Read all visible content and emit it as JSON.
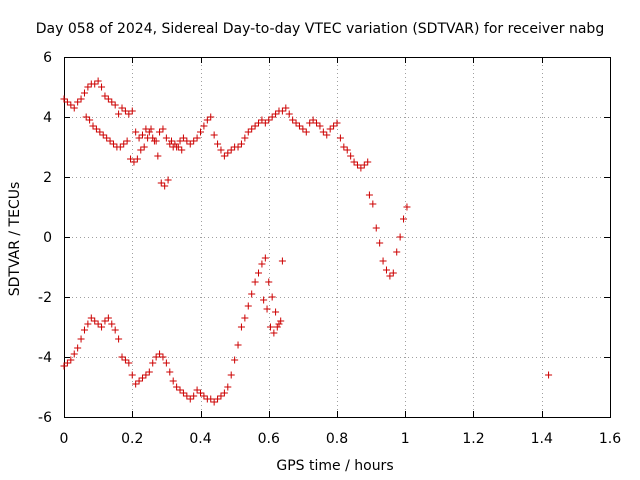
{
  "chart_data": {
    "type": "scatter",
    "title": "Day 058 of 2024, Sidereal Day-to-day VTEC variation (SDTVAR) for receiver nabg",
    "xlabel": "GPS time / hours",
    "ylabel": "SDTVAR / TECUs",
    "xlim": [
      0,
      1.6
    ],
    "ylim": [
      -6,
      6
    ],
    "xticks": [
      "0",
      "0.2",
      "0.4",
      "0.6",
      "0.8",
      "1",
      "1.2",
      "1.4",
      "1.6"
    ],
    "yticks": [
      "-6",
      "-4",
      "-2",
      "0",
      "2",
      "4",
      "6"
    ],
    "grid": true,
    "marker": "plus",
    "series": [
      {
        "name": "SDTVAR",
        "color": "#cc0000",
        "x": [
          0.0,
          0.01,
          0.02,
          0.03,
          0.04,
          0.05,
          0.06,
          0.07,
          0.08,
          0.09,
          0.1,
          0.11,
          0.12,
          0.13,
          0.14,
          0.15,
          0.16,
          0.17,
          0.18,
          0.19,
          0.2,
          0.21,
          0.22,
          0.23,
          0.24,
          0.25,
          0.26,
          0.27,
          0.28,
          0.29,
          0.3,
          0.31,
          0.32,
          0.33,
          0.34,
          0.35,
          0.36,
          0.37,
          0.38,
          0.39,
          0.4,
          0.41,
          0.42,
          0.43,
          0.44,
          0.45,
          0.46,
          0.47,
          0.48,
          0.49,
          0.5,
          0.51,
          0.52,
          0.53,
          0.54,
          0.55,
          0.56,
          0.57,
          0.58,
          0.59,
          0.6,
          0.61,
          0.62,
          0.63,
          0.64,
          0.65,
          0.66,
          0.67,
          0.68,
          0.69,
          0.7,
          0.71,
          0.72,
          0.73,
          0.74,
          0.75,
          0.76,
          0.77,
          0.78,
          0.79,
          0.8,
          0.81,
          0.82,
          0.83,
          0.84,
          0.85,
          0.86,
          0.87,
          0.88,
          0.89,
          0.0,
          0.01,
          0.02,
          0.03,
          0.04,
          0.05,
          0.06,
          0.07,
          0.08,
          0.09,
          0.1,
          0.11,
          0.12,
          0.13,
          0.14,
          0.15,
          0.16,
          0.17,
          0.18,
          0.19,
          0.2,
          0.21,
          0.22,
          0.23,
          0.24,
          0.25,
          0.26,
          0.27,
          0.28,
          0.29,
          0.3,
          0.31,
          0.32,
          0.33,
          0.34,
          0.35,
          0.36,
          0.37,
          0.38,
          0.39,
          0.4,
          0.41,
          0.42,
          0.43,
          0.44,
          0.45,
          0.46,
          0.47,
          0.48,
          0.49,
          0.5,
          0.51,
          0.52,
          0.53,
          0.54,
          0.55,
          0.56,
          0.57,
          0.58,
          0.59,
          0.6,
          0.61,
          0.62,
          0.63,
          0.64,
          0.065,
          0.075,
          0.085,
          0.095,
          0.105,
          0.115,
          0.125,
          0.135,
          0.145,
          0.155,
          0.165,
          0.175,
          0.185,
          0.195,
          0.205,
          0.215,
          0.225,
          0.235,
          0.245,
          0.255,
          0.265,
          0.275,
          0.285,
          0.295,
          0.305,
          0.315,
          0.325,
          0.335,
          0.345,
          0.585,
          0.595,
          0.605,
          0.615,
          0.625,
          0.635,
          0.895,
          0.905,
          0.915,
          0.925,
          0.935,
          0.945,
          0.955,
          0.965,
          0.975,
          0.985,
          0.995,
          1.005,
          1.42
        ],
        "y": [
          4.6,
          4.5,
          4.4,
          4.3,
          4.5,
          4.6,
          4.8,
          5.0,
          5.1,
          5.1,
          5.2,
          5.0,
          4.7,
          4.6,
          4.5,
          4.4,
          4.1,
          4.3,
          4.2,
          4.1,
          4.2,
          3.5,
          3.3,
          3.4,
          3.6,
          3.5,
          3.3,
          3.2,
          3.5,
          3.6,
          3.3,
          3.1,
          3.0,
          3.0,
          3.2,
          3.3,
          3.2,
          3.1,
          3.2,
          3.3,
          3.5,
          3.7,
          3.9,
          4.0,
          3.4,
          3.1,
          2.9,
          2.7,
          2.8,
          2.9,
          3.0,
          3.0,
          3.1,
          3.3,
          3.5,
          3.6,
          3.7,
          3.8,
          3.9,
          3.8,
          3.9,
          4.0,
          4.1,
          4.2,
          4.2,
          4.3,
          4.1,
          3.9,
          3.8,
          3.7,
          3.6,
          3.5,
          3.8,
          3.9,
          3.8,
          3.7,
          3.5,
          3.4,
          3.6,
          3.7,
          3.8,
          3.3,
          3.0,
          2.9,
          2.7,
          2.5,
          2.4,
          2.3,
          2.4,
          2.5,
          -4.3,
          -4.2,
          -4.1,
          -3.9,
          -3.7,
          -3.4,
          -3.1,
          -2.9,
          -2.7,
          -2.8,
          -2.9,
          -3.0,
          -2.8,
          -2.7,
          -2.9,
          -3.1,
          -3.4,
          -4.0,
          -4.1,
          -4.2,
          -4.6,
          -4.9,
          -4.8,
          -4.7,
          -4.6,
          -4.5,
          -4.2,
          -4.0,
          -3.9,
          -4.0,
          -4.2,
          -4.5,
          -4.8,
          -5.0,
          -5.1,
          -5.2,
          -5.3,
          -5.4,
          -5.3,
          -5.1,
          -5.2,
          -5.3,
          -5.4,
          -5.4,
          -5.5,
          -5.4,
          -5.3,
          -5.2,
          -5.0,
          -4.6,
          -4.1,
          -3.6,
          -3.0,
          -2.7,
          -2.3,
          -1.9,
          -1.5,
          -1.2,
          -0.9,
          -0.7,
          -1.5,
          -2.0,
          -2.5,
          -2.9,
          -0.8,
          4.0,
          3.9,
          3.7,
          3.6,
          3.5,
          3.4,
          3.3,
          3.2,
          3.1,
          3.0,
          3.0,
          3.1,
          3.2,
          2.6,
          2.5,
          2.6,
          2.9,
          3.0,
          3.3,
          3.6,
          3.2,
          2.7,
          1.8,
          1.7,
          1.9,
          3.2,
          3.1,
          3.0,
          2.9,
          -2.1,
          -2.4,
          -3.0,
          -3.2,
          -3.0,
          -2.8,
          1.4,
          1.1,
          0.3,
          -0.2,
          -0.8,
          -1.1,
          -1.3,
          -1.2,
          -0.5,
          0.0,
          0.6,
          1.0,
          -4.6
        ]
      }
    ]
  }
}
